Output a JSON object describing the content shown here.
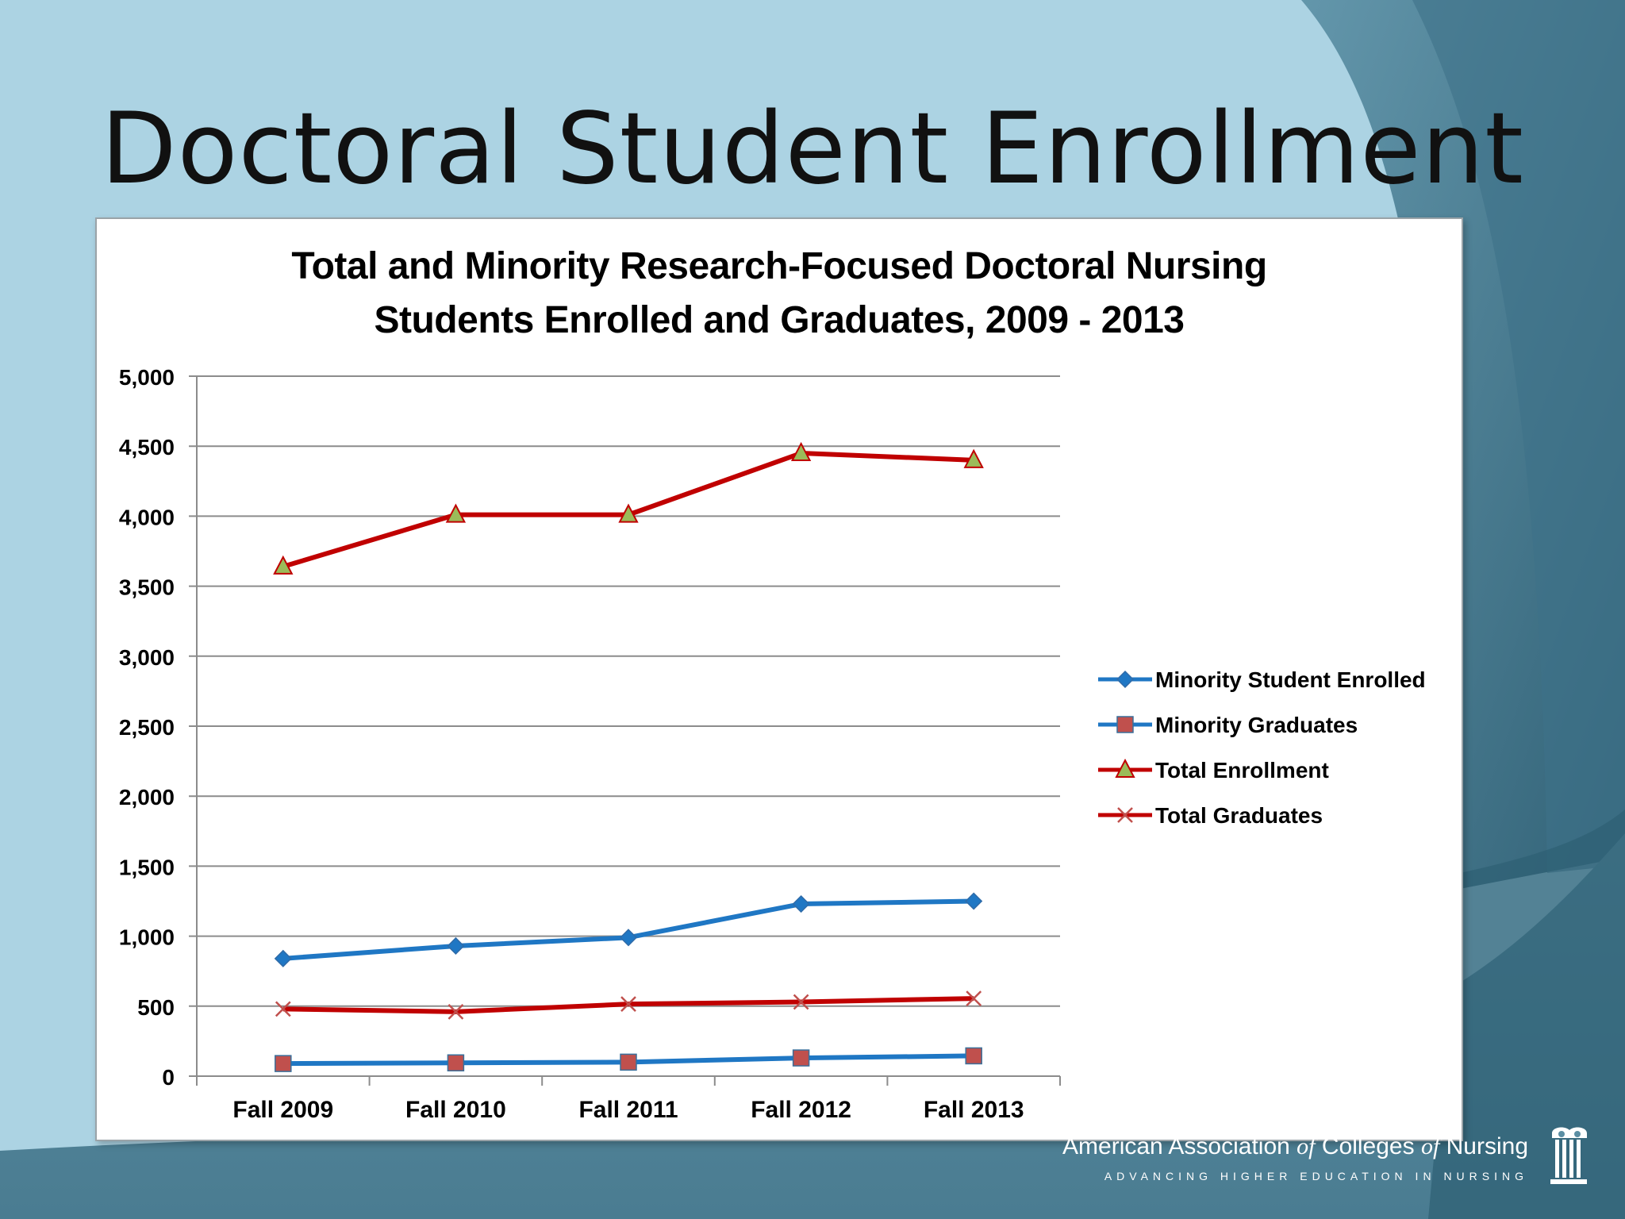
{
  "slide": {
    "title": "Doctoral Student Enrollment"
  },
  "colors": {
    "blue": "#1f77c4",
    "red": "#c00000",
    "triangle_fill": "#9bbb59",
    "square_fill": "#c0504d"
  },
  "footer": {
    "org_part1": "American Association",
    "org_of1": "of",
    "org_part2": "Colleges",
    "org_of2": "of",
    "org_part3": "Nursing",
    "tagline": "ADVANCING HIGHER EDUCATION IN NURSING"
  },
  "chart_data": {
    "type": "line",
    "title_line1": "Total and Minority Research-Focused Doctoral Nursing",
    "title_line2": "Students Enrolled and Graduates, 2009 - 2013",
    "categories": [
      "Fall 2009",
      "Fall 2010",
      "Fall 2011",
      "Fall 2012",
      "Fall 2013"
    ],
    "ylim": [
      0,
      5000
    ],
    "yticks": [
      0,
      500,
      1000,
      1500,
      2000,
      2500,
      3000,
      3500,
      4000,
      4500,
      5000
    ],
    "ytick_labels": [
      "0",
      "500",
      "1,000",
      "1,500",
      "2,000",
      "2,500",
      "3,000",
      "3,500",
      "4,000",
      "4,500",
      "5,000"
    ],
    "grid": true,
    "legend_position": "right",
    "series": [
      {
        "name": "Minority Student Enrolled",
        "values": [
          840,
          930,
          990,
          1230,
          1250
        ],
        "color": "#1f77c4",
        "marker": "diamond"
      },
      {
        "name": "Minority Graduates",
        "values": [
          90,
          95,
          100,
          130,
          145
        ],
        "color": "#1f77c4",
        "marker": "square"
      },
      {
        "name": "Total Enrollment",
        "values": [
          3640,
          4010,
          4010,
          4450,
          4400
        ],
        "color": "#c00000",
        "marker": "triangle"
      },
      {
        "name": "Total Graduates",
        "values": [
          480,
          460,
          515,
          530,
          555
        ],
        "color": "#c00000",
        "marker": "x"
      }
    ]
  }
}
